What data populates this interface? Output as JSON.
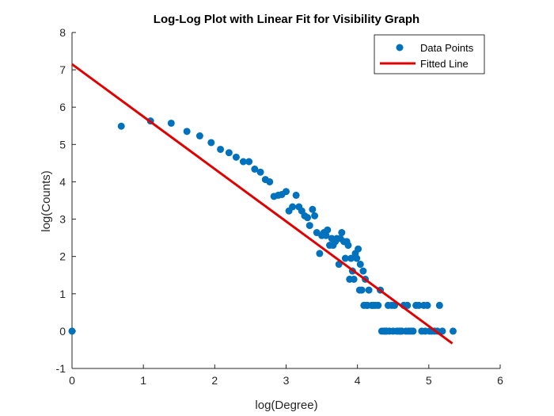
{
  "chart_data": {
    "type": "scatter",
    "title": "Log-Log Plot with Linear Fit for Visibility Graph",
    "xlabel": "log(Degree)",
    "ylabel": "log(Counts)",
    "xlim": [
      0,
      6
    ],
    "ylim": [
      -1,
      8
    ],
    "xticks": [
      "0",
      "1",
      "2",
      "3",
      "4",
      "5",
      "6"
    ],
    "yticks": [
      "-1",
      "0",
      "1",
      "2",
      "3",
      "4",
      "5",
      "6",
      "7",
      "8"
    ],
    "grid": false,
    "legend_position": "top-right",
    "series": [
      {
        "name": "Data Points",
        "kind": "scatter",
        "color": "#0072BD",
        "points": [
          [
            0,
            0
          ],
          [
            0.69,
            5.49
          ],
          [
            1.1,
            5.63
          ],
          [
            1.39,
            5.57
          ],
          [
            1.61,
            5.35
          ],
          [
            1.79,
            5.23
          ],
          [
            1.95,
            5.05
          ],
          [
            2.08,
            4.87
          ],
          [
            2.2,
            4.78
          ],
          [
            2.3,
            4.66
          ],
          [
            2.4,
            4.54
          ],
          [
            2.48,
            4.54
          ],
          [
            2.56,
            4.34
          ],
          [
            2.64,
            4.26
          ],
          [
            2.71,
            4.06
          ],
          [
            2.77,
            4.0
          ],
          [
            2.83,
            3.61
          ],
          [
            2.89,
            3.64
          ],
          [
            2.94,
            3.66
          ],
          [
            3.0,
            3.74
          ],
          [
            3.04,
            3.22
          ],
          [
            3.09,
            3.33
          ],
          [
            3.14,
            3.64
          ],
          [
            3.18,
            3.33
          ],
          [
            3.22,
            3.22
          ],
          [
            3.26,
            3.09
          ],
          [
            3.3,
            3.04
          ],
          [
            3.33,
            2.83
          ],
          [
            3.37,
            3.26
          ],
          [
            3.4,
            3.09
          ],
          [
            3.43,
            2.64
          ],
          [
            3.47,
            2.08
          ],
          [
            3.5,
            2.56
          ],
          [
            3.53,
            2.64
          ],
          [
            3.56,
            2.56
          ],
          [
            3.58,
            2.71
          ],
          [
            3.61,
            2.3
          ],
          [
            3.64,
            2.48
          ],
          [
            3.66,
            2.3
          ],
          [
            3.69,
            2.4
          ],
          [
            3.71,
            2.48
          ],
          [
            3.74,
            1.79
          ],
          [
            3.76,
            2.48
          ],
          [
            3.78,
            2.64
          ],
          [
            3.81,
            2.4
          ],
          [
            3.83,
            1.95
          ],
          [
            3.85,
            2.4
          ],
          [
            3.87,
            2.3
          ],
          [
            3.89,
            1.39
          ],
          [
            3.91,
            1.95
          ],
          [
            3.93,
            1.61
          ],
          [
            3.95,
            1.39
          ],
          [
            3.97,
            2.08
          ],
          [
            3.99,
            1.95
          ],
          [
            4.01,
            2.2
          ],
          [
            4.03,
            1.1
          ],
          [
            4.04,
            1.79
          ],
          [
            4.06,
            1.1
          ],
          [
            4.08,
            1.61
          ],
          [
            4.09,
            0.69
          ],
          [
            4.11,
            1.39
          ],
          [
            4.13,
            0.69
          ],
          [
            4.14,
            0.69
          ],
          [
            4.16,
            1.1
          ],
          [
            4.2,
            0.69
          ],
          [
            4.22,
            0.69
          ],
          [
            4.25,
            0.69
          ],
          [
            4.29,
            0.69
          ],
          [
            4.32,
            1.1
          ],
          [
            4.34,
            0.0
          ],
          [
            4.37,
            0.0
          ],
          [
            4.39,
            0.0
          ],
          [
            4.41,
            0.0
          ],
          [
            4.43,
            0.69
          ],
          [
            4.45,
            0.0
          ],
          [
            4.48,
            0.69
          ],
          [
            4.5,
            0.0
          ],
          [
            4.52,
            0.69
          ],
          [
            4.55,
            0.0
          ],
          [
            4.58,
            0.0
          ],
          [
            4.6,
            0.0
          ],
          [
            4.62,
            0.0
          ],
          [
            4.65,
            0.69
          ],
          [
            4.68,
            0.0
          ],
          [
            4.7,
            0.69
          ],
          [
            4.72,
            0.0
          ],
          [
            4.75,
            0.0
          ],
          [
            4.78,
            0.0
          ],
          [
            4.82,
            0.69
          ],
          [
            4.86,
            0.69
          ],
          [
            4.9,
            0.0
          ],
          [
            4.93,
            0.69
          ],
          [
            4.95,
            0.0
          ],
          [
            4.98,
            0.69
          ],
          [
            5.01,
            0.0
          ],
          [
            5.04,
            0.0
          ],
          [
            5.08,
            0.0
          ],
          [
            5.12,
            0.0
          ],
          [
            5.15,
            0.69
          ],
          [
            5.19,
            0.0
          ],
          [
            5.34,
            0.0
          ]
        ]
      },
      {
        "name": "Fitted Line",
        "kind": "line",
        "color": "#E00000",
        "x": [
          0,
          5.33
        ],
        "y": [
          7.15,
          -0.33
        ]
      }
    ]
  }
}
